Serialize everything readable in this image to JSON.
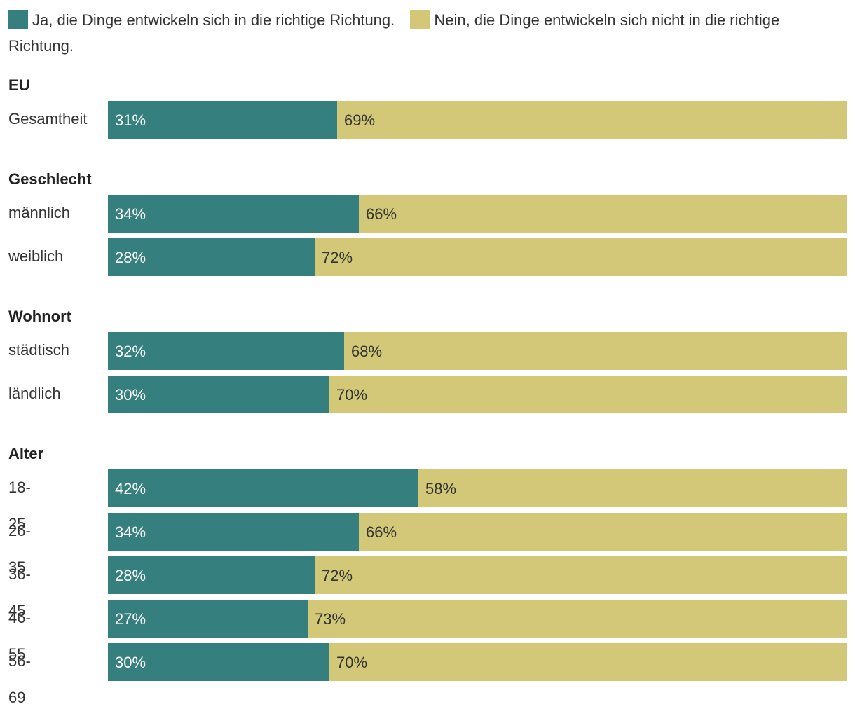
{
  "chart_data": {
    "type": "bar",
    "orientation": "horizontal",
    "stacked": true,
    "normalized": true,
    "legend": [
      {
        "name": "Ja, die Dinge entwickeln sich in die richtige Richtung.",
        "color": "#357f7f"
      },
      {
        "name": "Nein, die Dinge entwickeln sich nicht in die richtige Richtung.",
        "color": "#d2c878"
      }
    ],
    "groups": [
      {
        "title": "EU",
        "rows": [
          {
            "label": "Gesamtheit",
            "values": [
              31,
              69
            ]
          }
        ]
      },
      {
        "title": "Geschlecht",
        "rows": [
          {
            "label": "männlich",
            "values": [
              34,
              66
            ]
          },
          {
            "label": "weiblich",
            "values": [
              28,
              72
            ]
          }
        ]
      },
      {
        "title": "Wohnort",
        "rows": [
          {
            "label": "städtisch",
            "values": [
              32,
              68
            ]
          },
          {
            "label": "ländlich",
            "values": [
              30,
              70
            ]
          }
        ]
      },
      {
        "title": "Alter",
        "rows": [
          {
            "label": "18-25",
            "values": [
              42,
              58
            ]
          },
          {
            "label": "26-35",
            "values": [
              34,
              66
            ]
          },
          {
            "label": "36-45",
            "values": [
              28,
              72
            ]
          },
          {
            "label": "46-55",
            "values": [
              27,
              73
            ]
          },
          {
            "label": "56-69",
            "values": [
              30,
              70
            ]
          }
        ]
      }
    ],
    "value_suffix": "%",
    "label_colors": {
      "on_first": "#ffffff",
      "on_second": "#333333"
    }
  }
}
